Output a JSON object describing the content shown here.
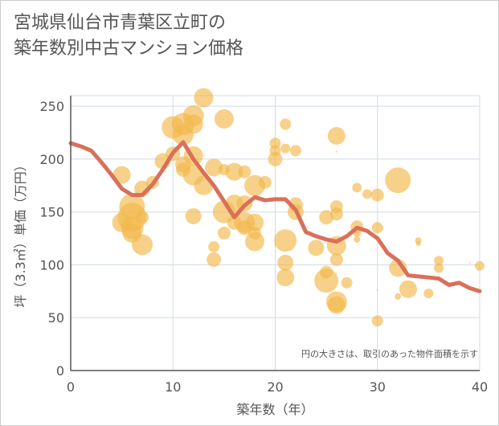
{
  "chart_data": {
    "type": "scatter",
    "title": "宮城県仙台市青葉区立町の\n築年数別中古マンション価格",
    "xlabel": "築年数（年）",
    "ylabel": "坪（3.3㎡）単価（万円）",
    "xlim": [
      0,
      40
    ],
    "ylim": [
      0,
      260
    ],
    "xticks": [
      0,
      10,
      20,
      30,
      40
    ],
    "yticks": [
      0,
      50,
      100,
      150,
      200,
      250
    ],
    "grid": true,
    "annotation": "円の大きさは、取引のあった物件面積を示す",
    "colors": {
      "bubble": "#f2b84b",
      "line": "#d9705a",
      "grid": "#d0dbe4",
      "axis": "#555555"
    },
    "series": [
      {
        "type": "bubble",
        "points": [
          {
            "x": 5,
            "y": 185,
            "r": 11
          },
          {
            "x": 5,
            "y": 140,
            "r": 12
          },
          {
            "x": 6,
            "y": 155,
            "r": 16
          },
          {
            "x": 6,
            "y": 145,
            "r": 18
          },
          {
            "x": 6,
            "y": 135,
            "r": 14
          },
          {
            "x": 6,
            "y": 130,
            "r": 12
          },
          {
            "x": 7,
            "y": 172,
            "r": 10
          },
          {
            "x": 7,
            "y": 145,
            "r": 8
          },
          {
            "x": 7,
            "y": 119,
            "r": 13
          },
          {
            "x": 8,
            "y": 178,
            "r": 8
          },
          {
            "x": 9,
            "y": 198,
            "r": 10
          },
          {
            "x": 10,
            "y": 230,
            "r": 14
          },
          {
            "x": 10,
            "y": 205,
            "r": 9
          },
          {
            "x": 11,
            "y": 233,
            "r": 14
          },
          {
            "x": 11,
            "y": 223,
            "r": 13
          },
          {
            "x": 11,
            "y": 195,
            "r": 10
          },
          {
            "x": 11,
            "y": 190,
            "r": 9
          },
          {
            "x": 12,
            "y": 241,
            "r": 13
          },
          {
            "x": 12,
            "y": 233,
            "r": 12
          },
          {
            "x": 12,
            "y": 203,
            "r": 12
          },
          {
            "x": 12,
            "y": 185,
            "r": 13
          },
          {
            "x": 12,
            "y": 146,
            "r": 10
          },
          {
            "x": 13,
            "y": 258,
            "r": 12
          },
          {
            "x": 13,
            "y": 175,
            "r": 12
          },
          {
            "x": 14,
            "y": 192,
            "r": 11
          },
          {
            "x": 14,
            "y": 117,
            "r": 7
          },
          {
            "x": 14,
            "y": 105,
            "r": 9
          },
          {
            "x": 15,
            "y": 238,
            "r": 12
          },
          {
            "x": 15,
            "y": 190,
            "r": 7
          },
          {
            "x": 15,
            "y": 150,
            "r": 14
          },
          {
            "x": 15,
            "y": 130,
            "r": 8
          },
          {
            "x": 16,
            "y": 188,
            "r": 11
          },
          {
            "x": 16,
            "y": 158,
            "r": 11
          },
          {
            "x": 16,
            "y": 140,
            "r": 9
          },
          {
            "x": 17,
            "y": 188,
            "r": 8
          },
          {
            "x": 17,
            "y": 158,
            "r": 10
          },
          {
            "x": 17,
            "y": 140,
            "r": 13
          },
          {
            "x": 17,
            "y": 135,
            "r": 9
          },
          {
            "x": 18,
            "y": 175,
            "r": 13
          },
          {
            "x": 18,
            "y": 140,
            "r": 11
          },
          {
            "x": 18,
            "y": 130,
            "r": 8
          },
          {
            "x": 18,
            "y": 122,
            "r": 12
          },
          {
            "x": 19,
            "y": 178,
            "r": 8
          },
          {
            "x": 20,
            "y": 215,
            "r": 7
          },
          {
            "x": 20,
            "y": 208,
            "r": 7
          },
          {
            "x": 20,
            "y": 200,
            "r": 9
          },
          {
            "x": 21,
            "y": 233,
            "r": 7
          },
          {
            "x": 21,
            "y": 210,
            "r": 6
          },
          {
            "x": 21,
            "y": 123,
            "r": 14
          },
          {
            "x": 21,
            "y": 102,
            "r": 10
          },
          {
            "x": 21,
            "y": 88,
            "r": 11
          },
          {
            "x": 22,
            "y": 208,
            "r": 7
          },
          {
            "x": 22,
            "y": 157,
            "r": 9
          },
          {
            "x": 22,
            "y": 150,
            "r": 10
          },
          {
            "x": 24,
            "y": 116,
            "r": 10
          },
          {
            "x": 25,
            "y": 145,
            "r": 9
          },
          {
            "x": 25,
            "y": 93,
            "r": 8
          },
          {
            "x": 25,
            "y": 85,
            "r": 15
          },
          {
            "x": 26,
            "y": 222,
            "r": 11
          },
          {
            "x": 26,
            "y": 207,
            "r": 1
          },
          {
            "x": 26,
            "y": 155,
            "r": 8
          },
          {
            "x": 26,
            "y": 148,
            "r": 8
          },
          {
            "x": 26,
            "y": 118,
            "r": 12
          },
          {
            "x": 26,
            "y": 105,
            "r": 8
          },
          {
            "x": 26,
            "y": 65,
            "r": 13
          },
          {
            "x": 26,
            "y": 62,
            "r": 11
          },
          {
            "x": 27,
            "y": 83,
            "r": 7
          },
          {
            "x": 28,
            "y": 173,
            "r": 6
          },
          {
            "x": 28,
            "y": 136,
            "r": 8
          },
          {
            "x": 28,
            "y": 130,
            "r": 5
          },
          {
            "x": 28,
            "y": 124,
            "r": 4
          },
          {
            "x": 29,
            "y": 167,
            "r": 6
          },
          {
            "x": 30,
            "y": 166,
            "r": 8
          },
          {
            "x": 30,
            "y": 135,
            "r": 7
          },
          {
            "x": 30,
            "y": 76,
            "r": 1
          },
          {
            "x": 30,
            "y": 47,
            "r": 7
          },
          {
            "x": 32,
            "y": 180,
            "r": 16
          },
          {
            "x": 32,
            "y": 97,
            "r": 11
          },
          {
            "x": 32,
            "y": 70,
            "r": 4
          },
          {
            "x": 33,
            "y": 77,
            "r": 11
          },
          {
            "x": 34,
            "y": 123,
            "r": 4
          },
          {
            "x": 34,
            "y": 120,
            "r": 3
          },
          {
            "x": 35,
            "y": 73,
            "r": 6
          },
          {
            "x": 36,
            "y": 104,
            "r": 6
          },
          {
            "x": 36,
            "y": 97,
            "r": 6
          },
          {
            "x": 39,
            "y": 102,
            "r": 1
          },
          {
            "x": 40,
            "y": 99,
            "r": 6
          }
        ]
      },
      {
        "type": "line",
        "x": [
          0,
          1,
          2,
          3,
          4,
          5,
          6,
          7,
          8,
          9,
          10,
          11,
          12,
          13,
          14,
          15,
          16,
          17,
          18,
          19,
          20,
          21,
          22,
          23,
          24,
          25,
          26,
          27,
          28,
          29,
          30,
          31,
          32,
          33,
          34,
          35,
          36,
          37,
          38,
          39,
          40
        ],
        "y": [
          215,
          212,
          208,
          197,
          185,
          172,
          166,
          166,
          176,
          190,
          206,
          216,
          200,
          187,
          175,
          160,
          145,
          156,
          164,
          161,
          162,
          162,
          152,
          131,
          127,
          124,
          122,
          127,
          135,
          132,
          125,
          111,
          104,
          90,
          89,
          88,
          87,
          81,
          83,
          78,
          75
        ]
      }
    ]
  }
}
